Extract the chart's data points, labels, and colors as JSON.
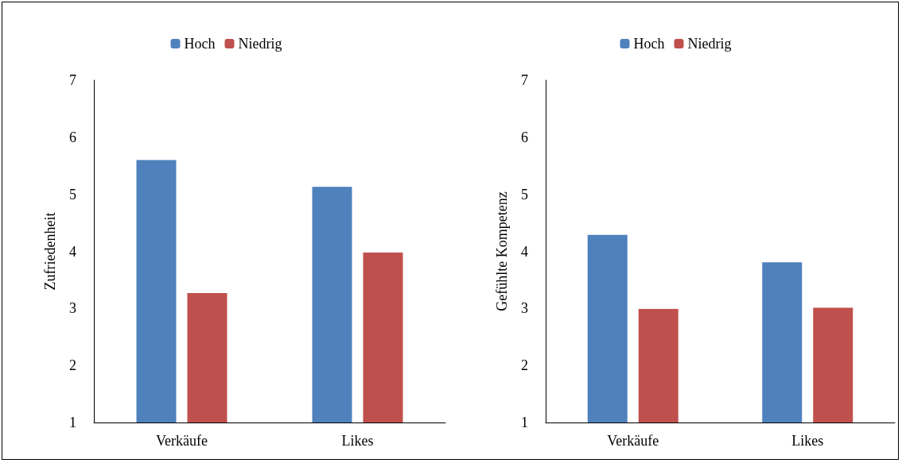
{
  "chart_data": [
    {
      "type": "bar",
      "categories": [
        "Verkäufe",
        "Likes"
      ],
      "ylabel": "Zufriedenheit",
      "ylim": [
        1,
        7
      ],
      "yticks": [
        1,
        2,
        3,
        4,
        5,
        6,
        7
      ],
      "grid": false,
      "legend": "top",
      "series": [
        {
          "name": "Hoch",
          "color": "#4f81bd",
          "values": [
            5.6,
            5.13
          ]
        },
        {
          "name": "Niedrig",
          "color": "#c0504d",
          "values": [
            3.27,
            3.98
          ]
        }
      ]
    },
    {
      "type": "bar",
      "categories": [
        "Verkäufe",
        "Likes"
      ],
      "ylabel": "Gefühlte Kompetenz",
      "ylim": [
        1,
        7
      ],
      "yticks": [
        1,
        2,
        3,
        4,
        5,
        6,
        7
      ],
      "grid": false,
      "legend": "top",
      "series": [
        {
          "name": "Hoch",
          "color": "#4f81bd",
          "values": [
            4.29,
            3.81
          ]
        },
        {
          "name": "Niedrig",
          "color": "#c0504d",
          "values": [
            2.99,
            3.01
          ]
        }
      ]
    }
  ]
}
